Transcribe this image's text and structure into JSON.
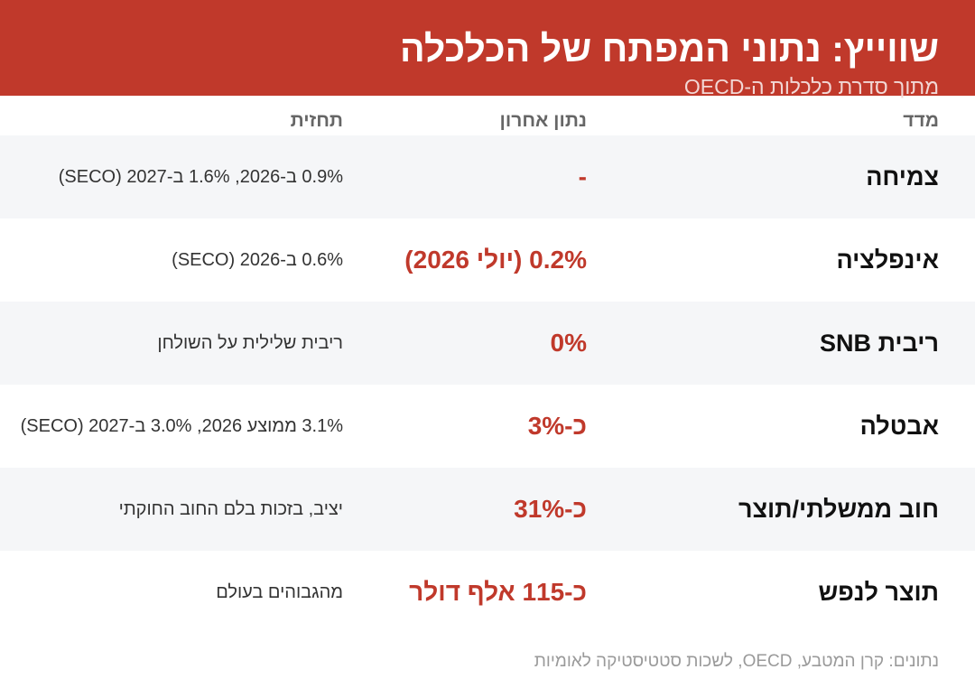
{
  "header": {
    "title": "שווייץ: נתוני המפתח של הכלכלה",
    "subtitle": "מתוך סדרת כלכלות ה-OECD"
  },
  "columns": {
    "metric": "מדד",
    "latest": "נתון אחרון",
    "forecast": "תחזית"
  },
  "rows": [
    {
      "metric": "צמיחה",
      "latest": "-",
      "forecast": "0.9% ב-2026, 1.6% ב-2027 (SECO)"
    },
    {
      "metric": "אינפלציה",
      "latest": "0.2% (יולי 2026)",
      "forecast": "0.6% ב-2026 (SECO)"
    },
    {
      "metric": "ריבית SNB",
      "latest": "0%",
      "forecast": "ריבית שלילית על השולחן"
    },
    {
      "metric": "אבטלה",
      "latest": "כ-3%",
      "forecast": "3.1% ממוצע 2026, 3.0% ב-2027 (SECO)"
    },
    {
      "metric": "חוב ממשלתי/תוצר",
      "latest": "כ-31%",
      "forecast": "יציב, בזכות בלם החוב החוקתי"
    },
    {
      "metric": "תוצר לנפש",
      "latest": "כ-115 אלף דולר",
      "forecast": "מהגבוהים בעולם"
    }
  ],
  "footer": {
    "source": "נתונים: קרן המטבע, OECD, לשכות סטטיסטיקה לאומיות"
  },
  "colors": {
    "accent": "#c0392b",
    "row_shade": "#f5f6f8"
  }
}
